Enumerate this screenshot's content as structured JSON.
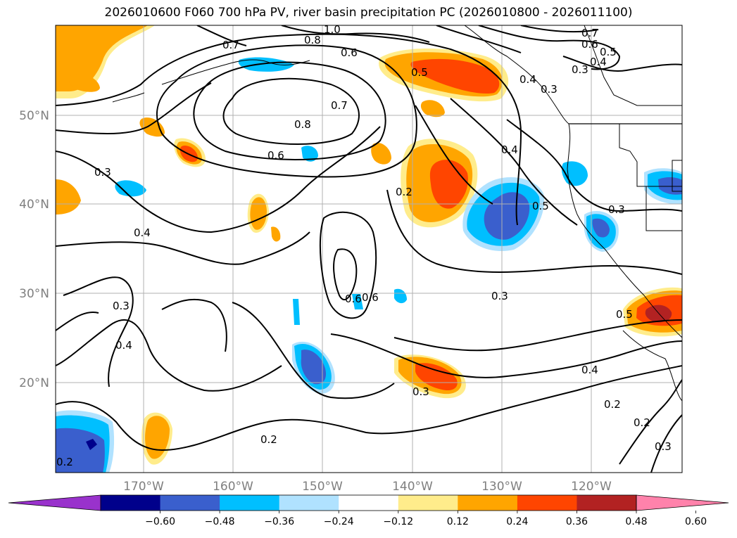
{
  "title": "2026010600 F060 700 hPa PV, river basin precipitation PC (2026010800 - 2026011100)",
  "map": {
    "lat_labels": [
      "50°N",
      "40°N",
      "30°N",
      "20°N"
    ],
    "lon_labels": [
      "170°W",
      "160°W",
      "150°W",
      "140°W",
      "130°W",
      "120°W"
    ],
    "grid_lats": [
      50,
      40,
      30,
      20
    ],
    "grid_lons": [
      -170,
      -160,
      -150,
      -140,
      -130,
      -120
    ],
    "extent": {
      "lon": [
        -178,
        -108
      ],
      "lat": [
        10,
        60
      ]
    }
  },
  "contour_labels": [
    "1.0",
    "0.8",
    "0.7",
    "0.6",
    "0.5",
    "0.4",
    "0.3",
    "0.7",
    "0.6",
    "0.5",
    "0.4",
    "0.3",
    "0.7",
    "0.8",
    "0.6",
    "0.3",
    "0.4",
    "0.2",
    "0.4",
    "0.5",
    "0.3",
    "0.3",
    "0.4",
    "0.6",
    "0.6",
    "0.3",
    "0.5",
    "0.4",
    "0.3",
    "0.2",
    "0.2",
    "0.3",
    "0.2",
    "0.2"
  ],
  "colorbar": {
    "colors": [
      "#9932cc",
      "#00008b",
      "#3a5fcd",
      "#00bfff",
      "#b0e2ff",
      "#ffffff",
      "#ffec8b",
      "#ffa500",
      "#ff4500",
      "#b22222",
      "#ff82ab"
    ],
    "ticks": [
      "−0.60",
      "−0.48",
      "−0.36",
      "−0.24",
      "−0.12",
      "0.12",
      "0.24",
      "0.36",
      "0.48",
      "0.60"
    ]
  },
  "colors": {
    "gridline": "#b0b0b0",
    "contour": "#000000",
    "coast": "#000000"
  }
}
